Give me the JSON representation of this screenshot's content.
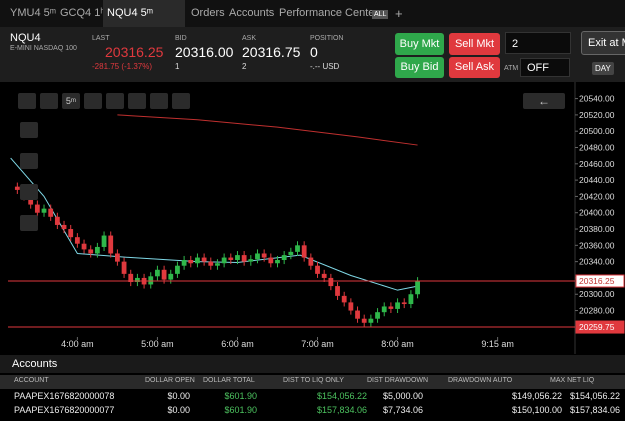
{
  "tabs": [
    "YMU4 5ᵐ",
    "GCQ4 1ʰ",
    "NQU4 5ᵐ",
    "Orders",
    "Accounts",
    "Performance Center",
    "ALL"
  ],
  "header": {
    "symbol": "NQU4",
    "description": "E-MINI NASDAQ 100",
    "last_label": "LAST",
    "last": "20316.25",
    "change": "-281.75 (-1.37%)",
    "bid_label": "BID",
    "bid": "20316.00",
    "bid_size": "1",
    "ask_label": "ASK",
    "ask": "20316.75",
    "ask_size": "2",
    "position_label": "POSITION",
    "position": "0",
    "position_value": "-.-- USD"
  },
  "buttons": {
    "buy_mkt": "Buy Mkt",
    "sell_mkt": "Sell Mkt",
    "buy_bid": "Buy Bid",
    "sell_ask": "Sell Ask",
    "quantity": "2",
    "atm_label": "ATM",
    "atm": "OFF",
    "tif": "DAY",
    "exit": "Exit at M"
  },
  "toolbar": {
    "interval": "5ᵐ"
  },
  "chart_data": {
    "type": "candlestick",
    "up_color": "#2fb84b",
    "down_color": "#e0393e",
    "x": [
      195,
      200,
      205,
      210,
      215,
      220,
      225,
      230,
      235,
      240,
      245,
      250,
      255,
      260,
      265,
      270,
      275,
      280,
      285,
      290,
      295,
      300,
      305,
      310,
      315,
      320,
      325,
      330,
      335,
      340,
      345,
      350,
      355,
      360,
      365,
      370,
      375,
      380,
      385,
      390,
      395,
      400,
      405,
      410,
      415,
      420,
      425,
      430,
      435,
      440,
      445,
      450,
      455,
      460,
      465,
      470,
      475,
      480,
      485,
      490,
      495
    ],
    "open": [
      20432,
      20428,
      20420,
      20410,
      20400,
      20405,
      20395,
      20385,
      20380,
      20370,
      20362,
      20355,
      20350,
      20358,
      20372,
      20350,
      20340,
      20325,
      20315,
      20320,
      20312,
      20322,
      20330,
      20318,
      20325,
      20335,
      20342,
      20338,
      20345,
      20340,
      20335,
      20338,
      20345,
      20342,
      20348,
      20340,
      20343,
      20350,
      20345,
      20338,
      20342,
      20348,
      20352,
      20360,
      20345,
      20335,
      20325,
      20320,
      20310,
      20298,
      20290,
      20280,
      20270,
      20265,
      20270,
      20278,
      20285,
      20282,
      20290,
      20288,
      20300
    ],
    "high": [
      20437,
      20433,
      20425,
      20415,
      20410,
      20410,
      20400,
      20390,
      20385,
      20375,
      20367,
      20360,
      20363,
      20377,
      20377,
      20355,
      20345,
      20330,
      20325,
      20325,
      20327,
      20335,
      20335,
      20330,
      20340,
      20347,
      20347,
      20350,
      20350,
      20345,
      20343,
      20350,
      20350,
      20353,
      20353,
      20348,
      20355,
      20355,
      20350,
      20347,
      20353,
      20357,
      20365,
      20365,
      20350,
      20340,
      20330,
      20325,
      20315,
      20303,
      20295,
      20285,
      20275,
      20275,
      20283,
      20290,
      20290,
      20295,
      20295,
      20305,
      20321
    ],
    "low": [
      20423,
      20415,
      20405,
      20395,
      20395,
      20390,
      20380,
      20375,
      20365,
      20357,
      20350,
      20345,
      20345,
      20353,
      20345,
      20335,
      20320,
      20310,
      20310,
      20307,
      20307,
      20317,
      20313,
      20313,
      20320,
      20330,
      20333,
      20333,
      20335,
      20330,
      20330,
      20333,
      20337,
      20337,
      20335,
      20335,
      20338,
      20340,
      20333,
      20333,
      20337,
      20343,
      20347,
      20340,
      20330,
      20320,
      20315,
      20305,
      20293,
      20285,
      20275,
      20265,
      20260,
      20260,
      20265,
      20273,
      20277,
      20277,
      20283,
      20283,
      20295
    ],
    "close": [
      20428,
      20420,
      20410,
      20400,
      20405,
      20395,
      20385,
      20380,
      20370,
      20362,
      20355,
      20350,
      20358,
      20372,
      20350,
      20340,
      20325,
      20315,
      20320,
      20312,
      20322,
      20330,
      20318,
      20325,
      20335,
      20342,
      20338,
      20345,
      20340,
      20335,
      20338,
      20345,
      20342,
      20348,
      20340,
      20343,
      20350,
      20345,
      20338,
      20342,
      20348,
      20352,
      20360,
      20345,
      20335,
      20325,
      20320,
      20310,
      20298,
      20290,
      20280,
      20270,
      20265,
      20270,
      20278,
      20285,
      20282,
      20290,
      20288,
      20300,
      20316.25
    ],
    "lines": [
      {
        "color": "#7fd8e6",
        "x": [
          190,
          215,
          240,
          280,
          330,
          360,
          407,
          445,
          480,
          495
        ],
        "values": [
          20467,
          20420,
          20350,
          20345,
          20340,
          20339,
          20348,
          20323,
          20305,
          20310
        ]
      },
      {
        "color": "#c0302f",
        "x": [
          270,
          330,
          390,
          450,
          495
        ],
        "values": [
          20520,
          20514,
          20505,
          20493,
          20483
        ]
      }
    ],
    "levels": [
      {
        "value": 20316.25,
        "color": "#e0393e"
      },
      {
        "value": 20259.75,
        "color": "#e0393e"
      }
    ],
    "xlim": [
      188,
      613
    ],
    "ylim": [
      20250,
      20553
    ],
    "xticks": [
      {
        "value": 240,
        "label": "4:00 am"
      },
      {
        "value": 300,
        "label": "5:00 am"
      },
      {
        "value": 360,
        "label": "6:00 am"
      },
      {
        "value": 420,
        "label": "7:00 am"
      },
      {
        "value": 480,
        "label": "8:00 am"
      },
      {
        "value": 555,
        "label": "9:15 am"
      }
    ],
    "yticks": [
      {
        "value": 20280,
        "label": "20280.00"
      },
      {
        "value": 20300,
        "label": "20300.00"
      },
      {
        "value": 20320,
        "label": "20320.00"
      },
      {
        "value": 20340,
        "label": "20340.00"
      },
      {
        "value": 20360,
        "label": "20360.00"
      },
      {
        "value": 20380,
        "label": "20380.00"
      },
      {
        "value": 20400,
        "label": "20400.00"
      },
      {
        "value": 20420,
        "label": "20420.00"
      },
      {
        "value": 20440,
        "label": "20440.00"
      },
      {
        "value": 20460,
        "label": "20460.00"
      },
      {
        "value": 20480,
        "label": "20480.00"
      },
      {
        "value": 20500,
        "label": "20500.00"
      },
      {
        "value": 20520,
        "label": "20520.00"
      },
      {
        "value": 20540,
        "label": "20540.00"
      }
    ]
  },
  "accounts": {
    "title": "Accounts",
    "columns": [
      "ACCOUNT",
      "DOLLAR OPEN",
      "DOLLAR TOTAL",
      "DIST TO LIQ ONLY",
      "DIST DRAWDOWN",
      "DRAWDOWN AUTO",
      "MAX NET LIQ"
    ],
    "rows": [
      [
        "PAAPEX1676820000078",
        "$0.00",
        "$601.90",
        "$154,056.22",
        "$5,000.00",
        "$149,056.22",
        "$154,056.22"
      ],
      [
        "PAAPEX1676820000077",
        "$0.00",
        "$601.90",
        "$157,834.06",
        "$7,734.06",
        "$150,100.00",
        "$157,834.06"
      ]
    ]
  }
}
